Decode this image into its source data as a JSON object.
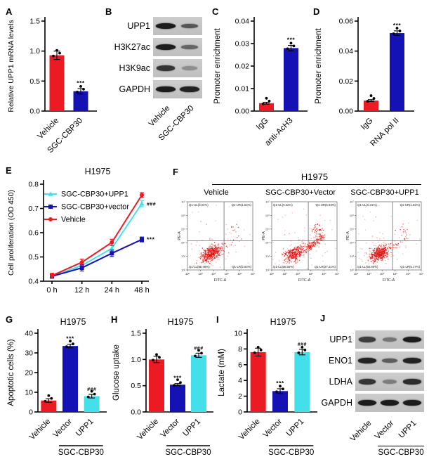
{
  "colors": {
    "red": "#EC1B23",
    "blue": "#1512B5",
    "cyan": "#43E0EC",
    "dot": "#E21613",
    "axis": "#000000"
  },
  "panel_letters": {
    "A": "A",
    "B": "B",
    "C": "C",
    "D": "D",
    "E": "E",
    "F": "F",
    "G": "G",
    "H": "H",
    "I": "I",
    "J": "J"
  },
  "chart_data": [
    {
      "panel": "A",
      "type": "bar",
      "title": "",
      "ylabel": "Relative UPP1 mRNA levels",
      "categories": [
        "Vehicle",
        "SGC-CBP30"
      ],
      "values": [
        0.93,
        0.33
      ],
      "errors": [
        0.07,
        0.045
      ],
      "bar_colors": [
        "red",
        "blue"
      ],
      "sig": [
        null,
        "***"
      ],
      "ylim": [
        0,
        1.5
      ],
      "yticks": [
        0,
        0.5,
        1,
        1.5
      ],
      "ytick_labels": [
        "0.0",
        "0.5",
        "1.0",
        "1.5"
      ]
    },
    {
      "panel": "C",
      "type": "bar",
      "title": "",
      "ylabel": "Promoter enrichment",
      "categories": [
        "IgG",
        "anti-AcH3"
      ],
      "values": [
        0.0035,
        0.028
      ],
      "errors": [
        0.0004,
        0.0012
      ],
      "bar_colors": [
        "red",
        "blue"
      ],
      "sig": [
        null,
        "***"
      ],
      "ylim": [
        0,
        0.04
      ],
      "yticks": [
        0,
        0.01,
        0.02,
        0.03,
        0.04
      ],
      "ytick_labels": [
        "0.00",
        "0.01",
        "0.02",
        "0.03",
        "0.04"
      ]
    },
    {
      "panel": "D",
      "type": "bar",
      "title": "",
      "ylabel": "Promoter enrichment",
      "categories": [
        "IgG",
        "RNA pol II"
      ],
      "values": [
        0.007,
        0.052
      ],
      "errors": [
        0.0006,
        0.0015
      ],
      "bar_colors": [
        "red",
        "blue"
      ],
      "sig": [
        null,
        "***"
      ],
      "ylim": [
        0,
        0.06
      ],
      "yticks": [
        0,
        0.02,
        0.04,
        0.06
      ],
      "ytick_labels": [
        "0.00",
        "0.02",
        "0.04",
        "0.06"
      ]
    },
    {
      "panel": "E",
      "type": "line",
      "title": "H1975",
      "ylabel": "Cell proliferation (OD 450)",
      "x_labels": [
        "0 h",
        "12 h",
        "24 h",
        "48 h"
      ],
      "ylim": [
        0.4,
        0.8
      ],
      "yticks": [
        0.4,
        0.5,
        0.6,
        0.7,
        0.8
      ],
      "ytick_labels": [
        "0.4",
        "0.5",
        "0.6",
        "0.7",
        "0.8"
      ],
      "legend_position": "top-left",
      "series": [
        {
          "name": "SGC-CBP30+UPP1",
          "color": "cyan",
          "marker": "triangle",
          "values": [
            0.42,
            0.465,
            0.535,
            0.72
          ],
          "errors": [
            0.008,
            0.01,
            0.012,
            0.013
          ],
          "annotation": "###"
        },
        {
          "name": "SGC-CBP30+vector",
          "color": "blue",
          "marker": "square",
          "values": [
            0.42,
            0.455,
            0.515,
            0.572
          ],
          "errors": [
            0.008,
            0.013,
            0.013,
            0.01
          ],
          "annotation": "***"
        },
        {
          "name": "Vehicle",
          "color": "red",
          "marker": "circle",
          "values": [
            0.423,
            0.478,
            0.56,
            0.755
          ],
          "errors": [
            0.01,
            0.013,
            0.013,
            0.01
          ],
          "annotation": null
        }
      ]
    },
    {
      "panel": "F",
      "type": "scatter",
      "subtype": "flow-cytometry",
      "title": "H1975",
      "xlabel": "FITC-A",
      "ylabel": "PE-A",
      "tick_labels": [
        "10²",
        "10³",
        "10⁴",
        "10⁵",
        "10⁶",
        "10⁷"
      ],
      "conditions": [
        {
          "label": "Vehicle",
          "quadrant_labels": {
            "UL": "Q1-UL(0.04%)",
            "UR": "Q1-UR(1.54%)",
            "LL": "Q1-LL(95.48%)",
            "LR": "Q1-LR(2.64%)"
          },
          "percent": {
            "UL": 0.04,
            "UR": 1.54,
            "LL": 95.48,
            "LR": 2.64
          }
        },
        {
          "label": "SGC-CBP30+Vector",
          "quadrant_labels": {
            "UL": "Q1-UL(0.32%)",
            "UR": "Q1-UR(5.93%)",
            "LL": "Q1-LL(66.55%)",
            "LR": "Q1-LR(27.21%)"
          },
          "percent": {
            "UL": 0.32,
            "UR": 5.93,
            "LL": 66.55,
            "LR": 27.21
          }
        },
        {
          "label": "SGC-CBP30+UPP1",
          "quadrant_labels": {
            "UL": "Q1-UL(0.31%)",
            "UR": "Q1-UR(1.92%)",
            "LL": "Q1-LL(92.60%)",
            "LR": "Q1-LR(5.17%)"
          },
          "percent": {
            "UL": 0.31,
            "UR": 1.92,
            "LL": 92.6,
            "LR": 5.17
          }
        }
      ]
    },
    {
      "panel": "G",
      "type": "bar",
      "title": "H1975",
      "ylabel": "Apoptotic cells (%)",
      "categories": [
        "Vehicle",
        "Vector",
        "UPP1"
      ],
      "values": [
        5.8,
        33.5,
        8.0
      ],
      "errors": [
        0.9,
        0.9,
        0.9
      ],
      "bar_colors": [
        "red",
        "blue",
        "cyan"
      ],
      "sig": [
        null,
        "***",
        "###"
      ],
      "ylim": [
        0,
        40
      ],
      "yticks": [
        0,
        10,
        20,
        30,
        40
      ],
      "ytick_labels": [
        "0",
        "10",
        "20",
        "30",
        "40"
      ],
      "group": {
        "label": "SGC-CBP30",
        "from": 1,
        "to": 2
      }
    },
    {
      "panel": "H",
      "type": "bar",
      "title": "H1975",
      "ylabel": "Glucose uptake",
      "categories": [
        "Vehicle",
        "Vector",
        "UPP1"
      ],
      "values": [
        1.0,
        0.52,
        1.08
      ],
      "errors": [
        0.06,
        0.02,
        0.04
      ],
      "bar_colors": [
        "red",
        "blue",
        "cyan"
      ],
      "sig": [
        null,
        "***",
        "###"
      ],
      "ylim": [
        0,
        1.5
      ],
      "yticks": [
        0,
        0.5,
        1,
        1.5
      ],
      "ytick_labels": [
        "0.0",
        "0.5",
        "1.0",
        "1.5"
      ],
      "group": {
        "label": "SGC-CBP30",
        "from": 1,
        "to": 2
      }
    },
    {
      "panel": "I",
      "type": "bar",
      "title": "H1975",
      "ylabel": "Lactate (mM)",
      "categories": [
        "Vehicle",
        "Vector",
        "UPP1"
      ],
      "values": [
        7.6,
        2.65,
        7.6
      ],
      "errors": [
        0.5,
        0.3,
        0.35
      ],
      "bar_colors": [
        "red",
        "blue",
        "cyan"
      ],
      "sig": [
        null,
        "***",
        "###"
      ],
      "ylim": [
        0,
        10
      ],
      "yticks": [
        0,
        2,
        4,
        6,
        8,
        10
      ],
      "ytick_labels": [
        "0",
        "2",
        "4",
        "6",
        "8",
        "10"
      ],
      "group": {
        "label": "SGC-CBP30",
        "from": 1,
        "to": 2
      }
    }
  ],
  "blots": {
    "B": {
      "lanes": [
        "Vehicle",
        "SGC-CBP30"
      ],
      "rows": [
        {
          "label": "UPP1",
          "intensities": [
            0.95,
            0.6
          ]
        },
        {
          "label": "H3K27ac",
          "intensities": [
            0.95,
            0.5
          ]
        },
        {
          "label": "H3K9ac",
          "intensities": [
            0.8,
            0.25
          ]
        },
        {
          "label": "GAPDH",
          "intensities": [
            0.95,
            0.9
          ]
        }
      ]
    },
    "J": {
      "lanes": [
        "Vehicle",
        "Vector",
        "UPP1"
      ],
      "group_label": "SGC-CBP30",
      "rows": [
        {
          "label": "UPP1",
          "intensities": [
            0.75,
            0.4,
            0.95
          ]
        },
        {
          "label": "ENO1",
          "intensities": [
            0.9,
            0.55,
            0.9
          ]
        },
        {
          "label": "LDHA",
          "intensities": [
            0.8,
            0.35,
            0.85
          ]
        },
        {
          "label": "GAPDH",
          "intensities": [
            0.95,
            0.95,
            0.95
          ]
        }
      ]
    }
  }
}
